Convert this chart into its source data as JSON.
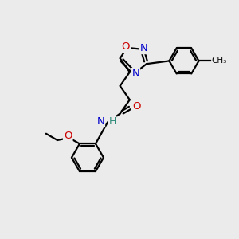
{
  "bg_color": "#ebebeb",
  "bond_color": "#000000",
  "N_color": "#0000cc",
  "O_color": "#cc0000",
  "H_color": "#2e8b7a",
  "line_width": 1.6,
  "font_size": 9.5,
  "figsize": [
    3.0,
    3.0
  ],
  "dpi": 100,
  "xlim": [
    0,
    10
  ],
  "ylim": [
    0,
    10
  ]
}
